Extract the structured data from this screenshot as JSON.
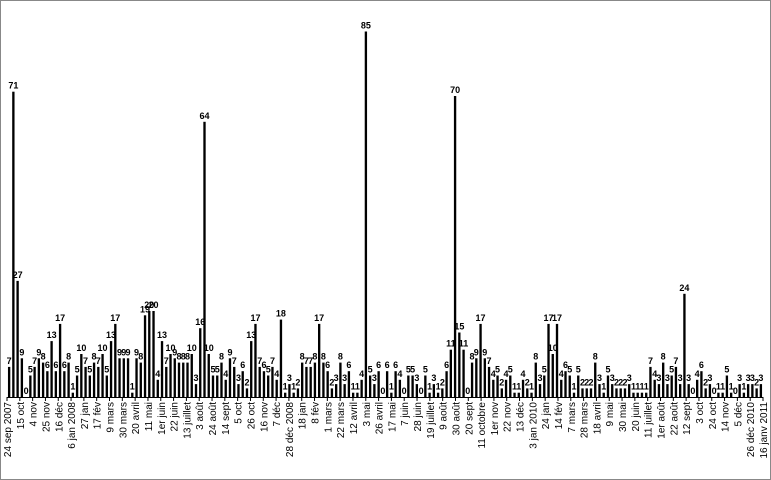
{
  "chart_data": {
    "type": "bar",
    "title": "",
    "xlabel": "",
    "ylabel": "",
    "ylim": [
      0,
      90
    ],
    "grid": false,
    "legend": "none",
    "bar_color": "#000000",
    "background": "#ffffff",
    "tick_labels": [
      "24 sep 2007",
      "15 oct",
      "4 nov",
      "25 nov",
      "16 déc",
      "6 jan 2008",
      "27 jan",
      "17 fév",
      "9 mars",
      "30 mars",
      "20 avril",
      "11 mai",
      "1er juin",
      "22 juin",
      "13 juillet",
      "3 août",
      "24 août",
      "14 sept",
      "5 oct",
      "26 oct",
      "16 nov",
      "7 déc",
      "28 déc 2008",
      "18 jan",
      "8 fév",
      "1 mars",
      "22 mars",
      "12 avril",
      "3 mai",
      "26 avril",
      "17 mai",
      "7 juin",
      "28 juin",
      "19 juillet",
      "9 août",
      "30 août",
      "20 sept",
      "11 octobre",
      "1er nov",
      "22 nov",
      "13 déc",
      "3 jan 2010",
      "24 jan",
      "14 fév",
      "7 mars",
      "28 mars",
      "18 avril",
      "9 mai",
      "30 mai",
      "20 juin",
      "11 juillet",
      "1er août",
      "22 août",
      "12 sept",
      "3 oct",
      "24 oct",
      "14 nov",
      "5 déc",
      "26 déc 2010",
      "16 janv 2011"
    ],
    "values": [
      7,
      71,
      27,
      9,
      0,
      5,
      7,
      9,
      8,
      6,
      13,
      6,
      17,
      6,
      8,
      1,
      5,
      10,
      7,
      5,
      8,
      7,
      10,
      5,
      13,
      17,
      9,
      9,
      9,
      1,
      9,
      8,
      19,
      20,
      20,
      4,
      13,
      7,
      10,
      9,
      8,
      8,
      8,
      10,
      3,
      16,
      64,
      10,
      5,
      5,
      8,
      4,
      9,
      7,
      3,
      6,
      2,
      13,
      17,
      7,
      6,
      5,
      7,
      4,
      18,
      1,
      3,
      1,
      2,
      8,
      7,
      7,
      8,
      17,
      8,
      6,
      2,
      3,
      8,
      3,
      6,
      1,
      1,
      4,
      85,
      5,
      3,
      6,
      0,
      6,
      1,
      6,
      4,
      0,
      5,
      5,
      3,
      0,
      5,
      1,
      3,
      1,
      2,
      6,
      11,
      70,
      15,
      11,
      0,
      8,
      9,
      17,
      9,
      7,
      4,
      5,
      2,
      4,
      5,
      1,
      1,
      4,
      2,
      1,
      8,
      3,
      5,
      17,
      10,
      17,
      4,
      6,
      5,
      1,
      5,
      2,
      2,
      2,
      8,
      3,
      1,
      5,
      3,
      2,
      2,
      2,
      3,
      1,
      1,
      1,
      1,
      7,
      4,
      3,
      8,
      3,
      5,
      7,
      3,
      24,
      3,
      0,
      4,
      6,
      2,
      3,
      0,
      1,
      1,
      5,
      1,
      0,
      3,
      1,
      3,
      3,
      2,
      3
    ]
  }
}
